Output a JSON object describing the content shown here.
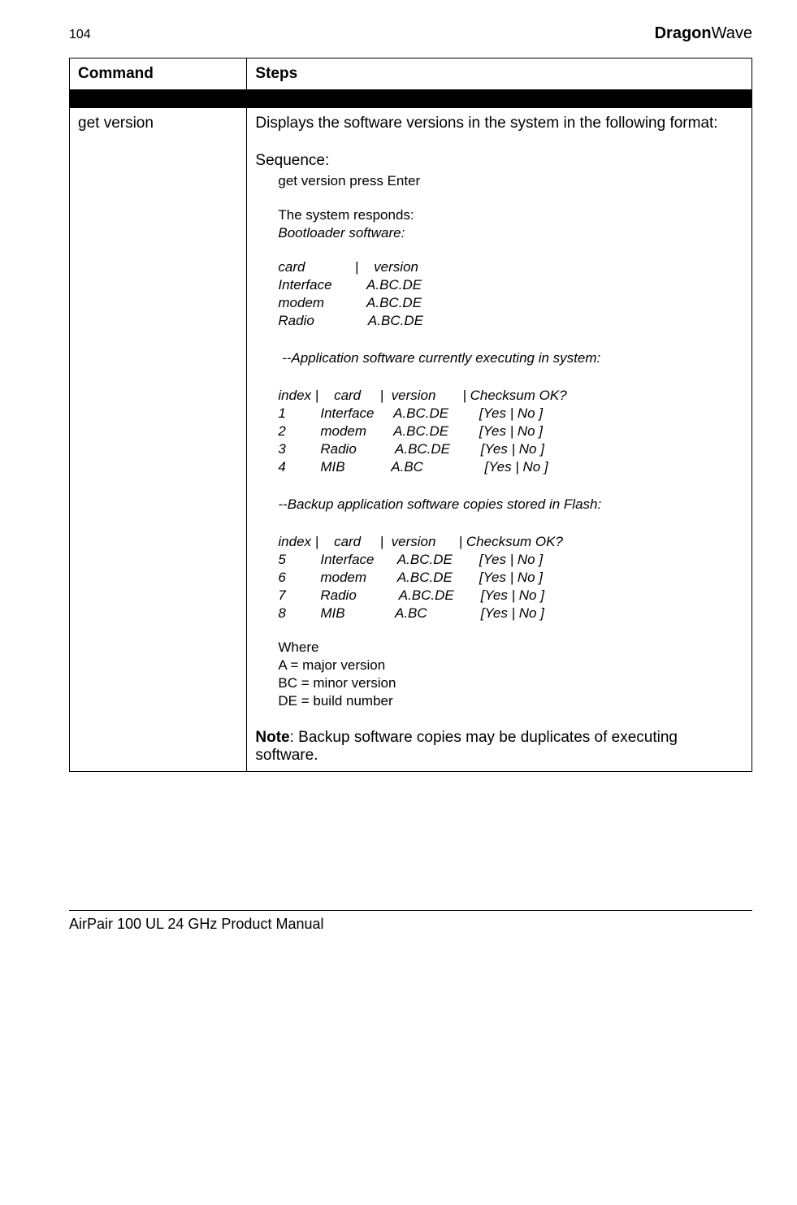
{
  "header": {
    "page_number": "104",
    "brand_bold": "Dragon",
    "brand_light": "Wave"
  },
  "table": {
    "col_command": "Command",
    "col_steps": "Steps",
    "command_name": "get version",
    "intro": "Displays the software versions in the system in the following format:",
    "sequence_label": "Sequence:",
    "seq_cmd": "get version press Enter",
    "sys_responds": "The system responds:",
    "bootloader_hdr": "Bootloader software:",
    "bl_header": "card             |    version",
    "bl_row1": "Interface         A.BC.DE",
    "bl_row2": "modem           A.BC.DE",
    "bl_row3": "Radio              A.BC.DE",
    "app_hdr": " --Application software currently executing in system:",
    "app_tbl_header": "index |    card     |  version       | Checksum OK?",
    "app_r1": "1         Interface     A.BC.DE        [Yes | No ]",
    "app_r2": "2         modem       A.BC.DE        [Yes | No ]",
    "app_r3": "3         Radio          A.BC.DE        [Yes | No ]",
    "app_r4": "4         MIB            A.BC                [Yes | No ]",
    "backup_hdr": "--Backup application software copies stored in Flash:",
    "bak_tbl_header": "index |    card     |  version      | Checksum OK?",
    "bak_r1": "5         Interface      A.BC.DE       [Yes | No ]",
    "bak_r2": "6         modem        A.BC.DE       [Yes | No ]",
    "bak_r3": "7         Radio           A.BC.DE       [Yes | No ]",
    "bak_r4": "8         MIB             A.BC              [Yes | No ]",
    "where_label": "Where",
    "where_a": "A = major version",
    "where_bc": "BC = minor version",
    "where_de": "DE = build number",
    "note_label": "Note",
    "note_text": ": Backup software copies may be duplicates of executing software."
  },
  "footer": {
    "text": "AirPair 100 UL 24 GHz Product Manual"
  }
}
